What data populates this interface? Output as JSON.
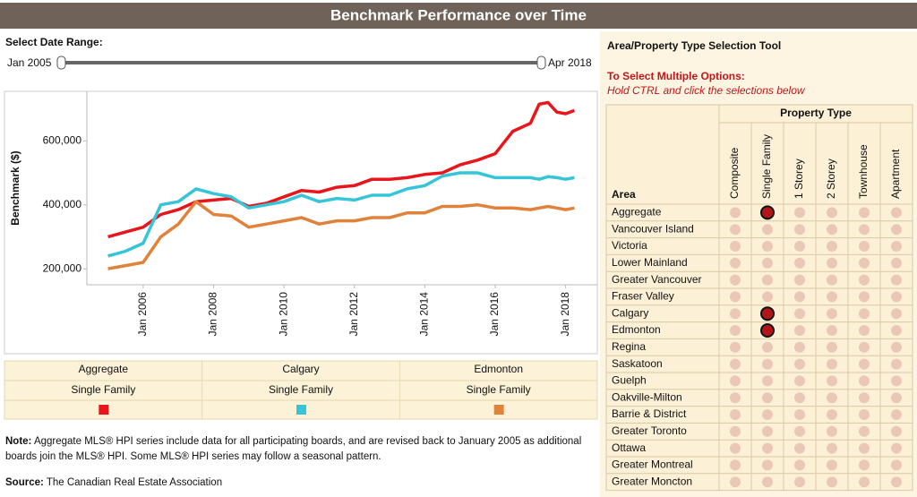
{
  "header": {
    "title": "Benchmark Performance over Time"
  },
  "date_range": {
    "label": "Select Date Range:",
    "start": "Jan 2005",
    "end": "Apr 2018"
  },
  "chart_data": {
    "type": "line",
    "y_label": "Benchmark ($)",
    "x": [
      2005,
      2005.5,
      2006,
      2006.5,
      2007,
      2007.5,
      2008,
      2008.5,
      2009,
      2009.5,
      2010,
      2010.5,
      2011,
      2011.5,
      2012,
      2012.5,
      2013,
      2013.5,
      2014,
      2014.5,
      2015,
      2015.5,
      2016,
      2016.5,
      2017,
      2017.25,
      2017.5,
      2017.75,
      2018,
      2018.25
    ],
    "xlim": [
      2004.4,
      2018.9
    ],
    "xticks": [
      {
        "value": 2006,
        "label": "Jan 2006"
      },
      {
        "value": 2008,
        "label": "Jan 2008"
      },
      {
        "value": 2010,
        "label": "Jan 2010"
      },
      {
        "value": 2012,
        "label": "Jan 2012"
      },
      {
        "value": 2014,
        "label": "Jan 2014"
      },
      {
        "value": 2016,
        "label": "Jan 2016"
      },
      {
        "value": 2018,
        "label": "Jan 2018"
      }
    ],
    "ylim": [
      150000,
      755000
    ],
    "yticks": [
      {
        "value": 200000,
        "label": "200,000"
      },
      {
        "value": 400000,
        "label": "400,000"
      },
      {
        "value": 600000,
        "label": "600,000"
      }
    ],
    "series": [
      {
        "name": "Aggregate",
        "property": "Single Family",
        "color": "#e8161b",
        "values": [
          300000,
          315000,
          330000,
          370000,
          385000,
          410000,
          415000,
          420000,
          395000,
          405000,
          425000,
          445000,
          440000,
          455000,
          460000,
          480000,
          480000,
          485000,
          495000,
          500000,
          525000,
          540000,
          560000,
          630000,
          655000,
          715000,
          720000,
          690000,
          685000,
          695000
        ]
      },
      {
        "name": "Calgary",
        "property": "Single Family",
        "color": "#36c5d8",
        "values": [
          240000,
          255000,
          280000,
          400000,
          410000,
          450000,
          435000,
          425000,
          390000,
          400000,
          410000,
          430000,
          410000,
          420000,
          415000,
          430000,
          430000,
          450000,
          460000,
          490000,
          500000,
          500000,
          485000,
          485000,
          485000,
          480000,
          488000,
          485000,
          480000,
          485000
        ]
      },
      {
        "name": "Edmonton",
        "property": "Single Family",
        "color": "#e0823a",
        "values": [
          200000,
          210000,
          220000,
          300000,
          340000,
          410000,
          370000,
          365000,
          330000,
          340000,
          350000,
          360000,
          340000,
          350000,
          350000,
          360000,
          360000,
          375000,
          375000,
          395000,
          395000,
          400000,
          390000,
          390000,
          385000,
          390000,
          395000,
          390000,
          385000,
          390000
        ]
      }
    ]
  },
  "note": {
    "label": "Note:",
    "text": "Aggregate MLS® HPI series include data for all participating boards, and are revised back to January 2005 as additional boards join the MLS® HPI. Some MLS® HPI series may follow a seasonal pattern."
  },
  "source": {
    "label": "Source:",
    "text": "The Canadian Real Estate Association"
  },
  "selection_tool": {
    "title": "Area/Property Type Selection Tool",
    "instruction_title": "To Select Multiple Options:",
    "instruction": "Hold CTRL and click the selections below",
    "property_header": "Property Type",
    "area_header": "Area",
    "property_types": [
      "Composite",
      "Single Family",
      "1 Storey",
      "2 Storey",
      "Townhouse",
      "Apartment"
    ],
    "areas": [
      {
        "name": "Aggregate",
        "selected": [
          false,
          true,
          false,
          false,
          false,
          false
        ]
      },
      {
        "name": "Vancouver Island",
        "selected": [
          false,
          false,
          false,
          false,
          false,
          false
        ]
      },
      {
        "name": "Victoria",
        "selected": [
          false,
          false,
          false,
          false,
          false,
          false
        ]
      },
      {
        "name": "Lower Mainland",
        "selected": [
          false,
          false,
          false,
          false,
          false,
          false
        ]
      },
      {
        "name": "Greater Vancouver",
        "selected": [
          false,
          false,
          false,
          false,
          false,
          false
        ]
      },
      {
        "name": "Fraser Valley",
        "selected": [
          false,
          false,
          false,
          false,
          false,
          false
        ]
      },
      {
        "name": "Calgary",
        "selected": [
          false,
          true,
          false,
          false,
          false,
          false
        ]
      },
      {
        "name": "Edmonton",
        "selected": [
          false,
          true,
          false,
          false,
          false,
          false
        ]
      },
      {
        "name": "Regina",
        "selected": [
          false,
          false,
          false,
          false,
          false,
          false
        ]
      },
      {
        "name": "Saskatoon",
        "selected": [
          false,
          false,
          false,
          false,
          false,
          false
        ]
      },
      {
        "name": "Guelph",
        "selected": [
          false,
          false,
          false,
          false,
          false,
          false
        ]
      },
      {
        "name": "Oakville-Milton",
        "selected": [
          false,
          false,
          false,
          false,
          false,
          false
        ]
      },
      {
        "name": "Barrie & District",
        "selected": [
          false,
          false,
          false,
          false,
          false,
          false
        ]
      },
      {
        "name": "Greater Toronto",
        "selected": [
          false,
          false,
          false,
          false,
          false,
          false
        ]
      },
      {
        "name": "Ottawa",
        "selected": [
          false,
          false,
          false,
          false,
          false,
          false
        ]
      },
      {
        "name": "Greater Montreal",
        "selected": [
          false,
          false,
          false,
          false,
          false,
          false
        ]
      },
      {
        "name": "Greater Moncton",
        "selected": [
          false,
          false,
          false,
          false,
          false,
          false
        ]
      }
    ]
  }
}
